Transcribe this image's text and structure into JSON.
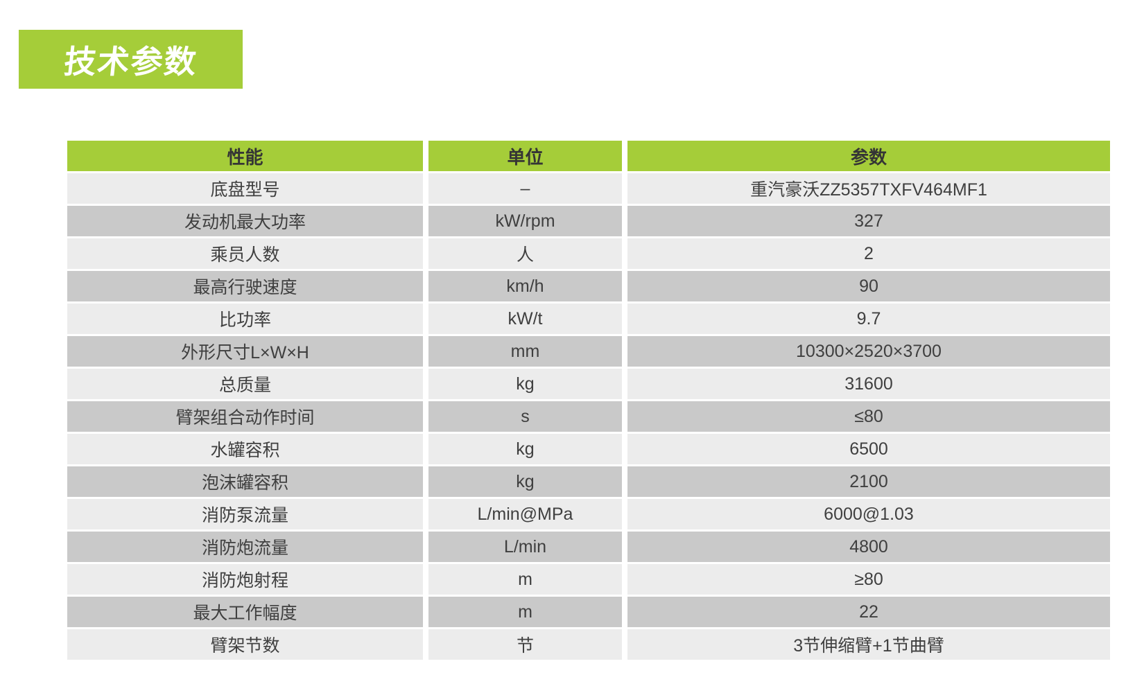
{
  "page": {
    "title": "技术参数"
  },
  "colors": {
    "accent_green": "#a5cd39",
    "title_text": "#ffffff",
    "header_text": "#353535",
    "cell_text": "#3f3f3f",
    "row_light": "#ececec",
    "row_dark": "#c9c9c9",
    "page_background": "#ffffff"
  },
  "table": {
    "headers": [
      "性能",
      "单位",
      "参数"
    ],
    "rows": [
      [
        "底盘型号",
        "–",
        "重汽豪沃ZZ5357TXFV464MF1"
      ],
      [
        "发动机最大功率",
        "kW/rpm",
        "327"
      ],
      [
        "乘员人数",
        "人",
        "2"
      ],
      [
        "最高行驶速度",
        "km/h",
        "90"
      ],
      [
        "比功率",
        "kW/t",
        "9.7"
      ],
      [
        "外形尺寸L×W×H",
        "mm",
        "10300×2520×3700"
      ],
      [
        "总质量",
        "kg",
        "31600"
      ],
      [
        "臂架组合动作时间",
        "s",
        "≤80"
      ],
      [
        "水罐容积",
        "kg",
        "6500"
      ],
      [
        "泡沫罐容积",
        "kg",
        "2100"
      ],
      [
        "消防泵流量",
        "L/min@MPa",
        "6000@1.03"
      ],
      [
        "消防炮流量",
        "L/min",
        "4800"
      ],
      [
        "消防炮射程",
        "m",
        "≥80"
      ],
      [
        "最大工作幅度",
        "m",
        "22"
      ],
      [
        "臂架节数",
        "节",
        "3节伸缩臂+1节曲臂"
      ]
    ]
  }
}
